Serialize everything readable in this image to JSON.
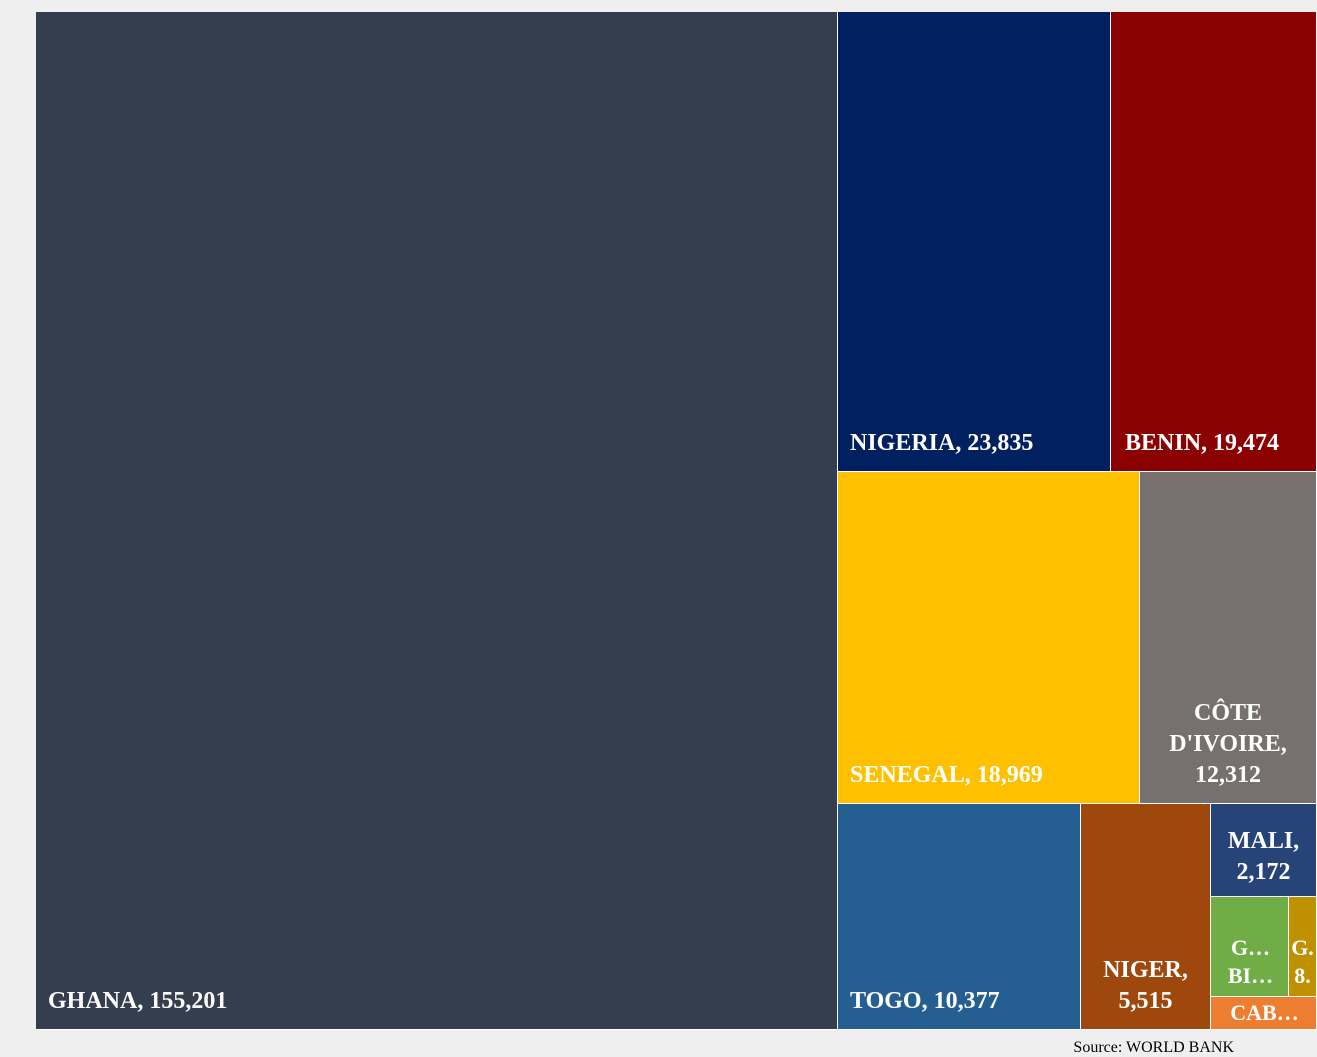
{
  "title_fragment": "",
  "source_label": "Source: WORLD BANK",
  "chart_data": {
    "type": "treemap",
    "title": "",
    "series": [
      {
        "name": "GHANA",
        "value": 155201,
        "label": "GHANA, 155,201",
        "color": "#343e4f"
      },
      {
        "name": "NIGERIA",
        "value": 23835,
        "label": "NIGERIA, 23,835",
        "color": "#002060"
      },
      {
        "name": "BENIN",
        "value": 19474,
        "label": "BENIN, 19,474",
        "color": "#8b0000"
      },
      {
        "name": "SENEGAL",
        "value": 18969,
        "label": "SENEGAL, 18,969",
        "color": "#ffc000"
      },
      {
        "name": "CÔTE D'IVOIRE",
        "value": 12312,
        "label_lines": [
          "CÔTE",
          "D'IVOIRE,",
          "12,312"
        ],
        "color": "#76716e"
      },
      {
        "name": "TOGO",
        "value": 10377,
        "label": "TOGO, 10,377",
        "color": "#255e91"
      },
      {
        "name": "NIGER",
        "value": 5515,
        "label_lines": [
          "NIGER,",
          "5,515"
        ],
        "color": "#9e480e"
      },
      {
        "name": "MALI",
        "value": 2172,
        "label_lines": [
          "MALI,",
          "2,172"
        ],
        "color": "#264478"
      },
      {
        "name": "G… BI…",
        "value": null,
        "label_lines": [
          "G…",
          "BI…"
        ],
        "color": "#70ad47"
      },
      {
        "name": "G.",
        "value": null,
        "label_lines": [
          "G.",
          "8."
        ],
        "color": "#bf9000"
      },
      {
        "name": "CAB…",
        "value": null,
        "label": "CAB…",
        "color": "#ed7d31"
      }
    ]
  }
}
